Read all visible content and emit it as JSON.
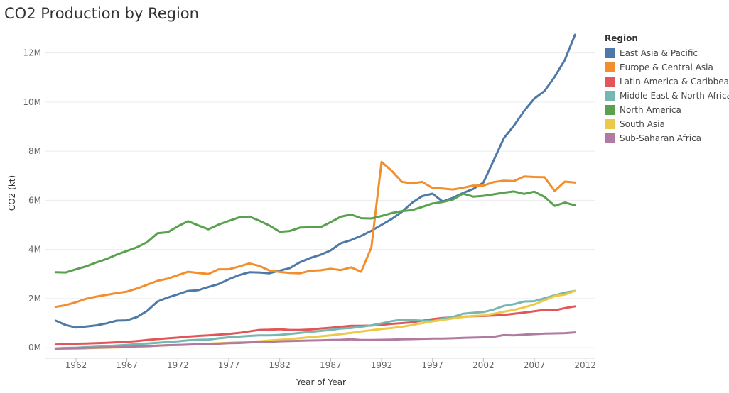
{
  "chart_data": {
    "type": "line",
    "title": "CO2 Production by Region",
    "xlabel": "Year of Year",
    "ylabel": "CO2 (kt)",
    "xlim": [
      1959,
      2013
    ],
    "ylim": [
      -200000,
      13000000
    ],
    "x_ticks": [
      1962,
      1967,
      1972,
      1977,
      1982,
      1987,
      1992,
      1997,
      2002,
      2007,
      2012
    ],
    "x_tick_labels": [
      "1962",
      "1967",
      "1972",
      "1977",
      "1982",
      "1987",
      "1992",
      "1997",
      "2002",
      "2007",
      "2012"
    ],
    "y_ticks": [
      0,
      2000000,
      4000000,
      6000000,
      8000000,
      10000000,
      12000000
    ],
    "y_tick_labels": [
      "0M",
      "2M",
      "4M",
      "6M",
      "8M",
      "10M",
      "12M"
    ],
    "grid": "horizontal",
    "legend_title": "Region",
    "legend_position": "right",
    "x": [
      1960,
      1961,
      1962,
      1963,
      1964,
      1965,
      1966,
      1967,
      1968,
      1969,
      1970,
      1971,
      1972,
      1973,
      1974,
      1975,
      1976,
      1977,
      1978,
      1979,
      1980,
      1981,
      1982,
      1983,
      1984,
      1985,
      1986,
      1987,
      1988,
      1989,
      1990,
      1991,
      1992,
      1993,
      1994,
      1995,
      1996,
      1997,
      1998,
      1999,
      2000,
      2001,
      2002,
      2003,
      2004,
      2005,
      2006,
      2007,
      2008,
      2009,
      2010,
      2011
    ],
    "series": [
      {
        "name": "East Asia & Pacific",
        "color": "#4e79a7",
        "values": [
          1100000,
          920000,
          820000,
          860000,
          910000,
          990000,
          1100000,
          1110000,
          1250000,
          1500000,
          1880000,
          2040000,
          2170000,
          2310000,
          2340000,
          2470000,
          2590000,
          2780000,
          2950000,
          3070000,
          3060000,
          3030000,
          3140000,
          3240000,
          3480000,
          3650000,
          3780000,
          3960000,
          4250000,
          4380000,
          4550000,
          4760000,
          5000000,
          5240000,
          5530000,
          5900000,
          6170000,
          6270000,
          5950000,
          6100000,
          6300000,
          6460000,
          6720000,
          7620000,
          8520000,
          9040000,
          9640000,
          10140000,
          10450000,
          11030000,
          11720000,
          12740000
        ]
      },
      {
        "name": "Europe & Central Asia",
        "color": "#f28e2b",
        "values": [
          1660000,
          1730000,
          1850000,
          1990000,
          2080000,
          2150000,
          2220000,
          2280000,
          2410000,
          2560000,
          2720000,
          2810000,
          2950000,
          3090000,
          3040000,
          3000000,
          3190000,
          3190000,
          3300000,
          3430000,
          3330000,
          3140000,
          3080000,
          3040000,
          3030000,
          3130000,
          3150000,
          3210000,
          3160000,
          3270000,
          3090000,
          4080000,
          7560000,
          7200000,
          6750000,
          6690000,
          6750000,
          6500000,
          6480000,
          6440000,
          6510000,
          6600000,
          6600000,
          6740000,
          6800000,
          6780000,
          6970000,
          6950000,
          6940000,
          6380000,
          6760000,
          6720000
        ]
      },
      {
        "name": "Latin America & Caribbean",
        "color": "#e15759",
        "values": [
          130000,
          140000,
          160000,
          170000,
          180000,
          200000,
          220000,
          240000,
          270000,
          310000,
          350000,
          380000,
          410000,
          450000,
          480000,
          500000,
          530000,
          560000,
          600000,
          660000,
          720000,
          730000,
          750000,
          720000,
          720000,
          740000,
          780000,
          810000,
          850000,
          890000,
          890000,
          900000,
          930000,
          970000,
          1000000,
          1030000,
          1100000,
          1160000,
          1210000,
          1230000,
          1260000,
          1280000,
          1290000,
          1310000,
          1330000,
          1380000,
          1430000,
          1480000,
          1540000,
          1520000,
          1610000,
          1680000
        ]
      },
      {
        "name": "Middle East & North Africa",
        "color": "#76b7b2",
        "values": [
          -30000,
          -10000,
          0,
          20000,
          40000,
          60000,
          90000,
          110000,
          150000,
          170000,
          200000,
          230000,
          260000,
          300000,
          320000,
          330000,
          380000,
          420000,
          450000,
          480000,
          500000,
          500000,
          520000,
          560000,
          600000,
          640000,
          680000,
          720000,
          780000,
          800000,
          850000,
          910000,
          990000,
          1080000,
          1140000,
          1120000,
          1100000,
          1080000,
          1180000,
          1250000,
          1380000,
          1420000,
          1450000,
          1550000,
          1700000,
          1770000,
          1880000,
          1890000,
          2010000,
          2130000,
          2240000,
          2310000
        ]
      },
      {
        "name": "North America",
        "color": "#59a14f",
        "values": [
          3070000,
          3060000,
          3190000,
          3310000,
          3470000,
          3610000,
          3790000,
          3940000,
          4090000,
          4300000,
          4660000,
          4700000,
          4940000,
          5150000,
          4980000,
          4820000,
          5010000,
          5160000,
          5300000,
          5340000,
          5170000,
          4970000,
          4720000,
          4750000,
          4890000,
          4900000,
          4900000,
          5110000,
          5330000,
          5420000,
          5270000,
          5260000,
          5360000,
          5480000,
          5560000,
          5600000,
          5730000,
          5870000,
          5930000,
          6030000,
          6270000,
          6150000,
          6180000,
          6240000,
          6310000,
          6360000,
          6260000,
          6350000,
          6140000,
          5770000,
          5910000,
          5790000
        ]
      },
      {
        "name": "South Asia",
        "color": "#edc948",
        "values": [
          -70000,
          -60000,
          -50000,
          -30000,
          -10000,
          0,
          10000,
          20000,
          40000,
          60000,
          80000,
          100000,
          110000,
          130000,
          140000,
          160000,
          180000,
          200000,
          220000,
          240000,
          260000,
          290000,
          320000,
          350000,
          390000,
          430000,
          460000,
          500000,
          550000,
          600000,
          660000,
          710000,
          760000,
          800000,
          850000,
          920000,
          1000000,
          1070000,
          1130000,
          1190000,
          1250000,
          1290000,
          1310000,
          1380000,
          1460000,
          1540000,
          1640000,
          1760000,
          1930000,
          2100000,
          2160000,
          2310000
        ]
      },
      {
        "name": "Sub-Saharan Africa",
        "color": "#b07aa1",
        "values": [
          -40000,
          -30000,
          -20000,
          -10000,
          0,
          10000,
          20000,
          30000,
          50000,
          60000,
          80000,
          100000,
          110000,
          120000,
          140000,
          150000,
          160000,
          180000,
          190000,
          210000,
          230000,
          240000,
          260000,
          270000,
          280000,
          290000,
          300000,
          310000,
          320000,
          340000,
          310000,
          310000,
          320000,
          330000,
          340000,
          350000,
          360000,
          370000,
          370000,
          380000,
          400000,
          410000,
          420000,
          440000,
          510000,
          500000,
          530000,
          550000,
          570000,
          580000,
          590000,
          620000
        ]
      }
    ]
  }
}
